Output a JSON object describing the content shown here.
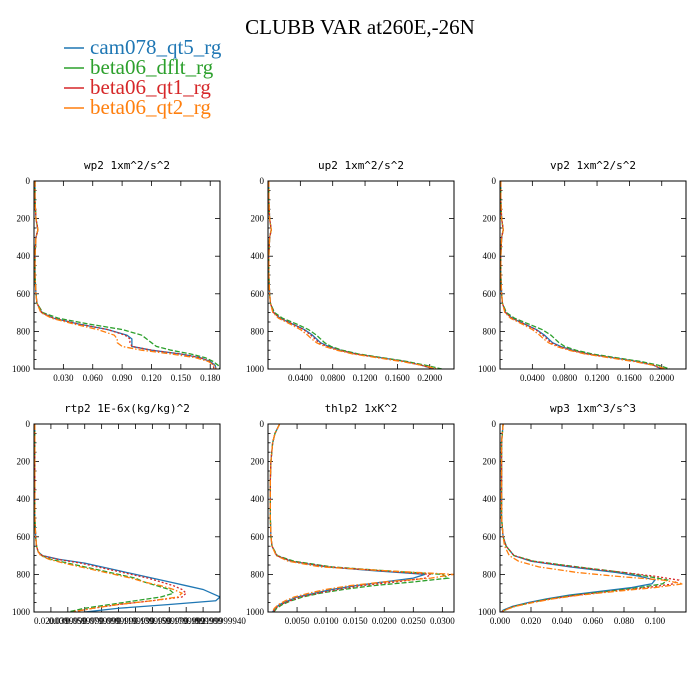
{
  "figure": {
    "title": "CLUBB VAR at260E,-26N"
  },
  "legend": [
    {
      "name": "cam078_qt5_rg",
      "color": "#1f77b4",
      "dash": ""
    },
    {
      "name": "beta06_dflt_rg",
      "color": "#2ca02c",
      "dash": "5,2"
    },
    {
      "name": "beta06_qt1_rg",
      "color": "#d62728",
      "dash": "2,2"
    },
    {
      "name": "beta06_qt2_rg",
      "color": "#ff7f0e",
      "dash": "6,2,1.5,2"
    }
  ],
  "chart_data": [
    {
      "type": "line",
      "title": "wp2  1xm^2/s^2",
      "xlim": [
        0,
        0.19
      ],
      "ylim": [
        1000,
        0
      ],
      "xticks": [
        0.03,
        0.06,
        0.09,
        0.12,
        0.15,
        0.18
      ],
      "xtick_labels": [
        "0.030",
        "0.060",
        "0.090",
        "0.120",
        "0.150",
        "0.180"
      ],
      "yticks": [
        0,
        200,
        400,
        600,
        800,
        1000
      ],
      "ytick_labels": [
        "0",
        "200",
        "400",
        "600",
        "800",
        "1000"
      ],
      "y": [
        0,
        100,
        200,
        260,
        300,
        400,
        500,
        600,
        650,
        700,
        730,
        760,
        790,
        820,
        840,
        860,
        880,
        900,
        920,
        940,
        960,
        980,
        1000
      ],
      "series": [
        {
          "name": "cam078_qt5_rg",
          "x": [
            0.001,
            0.001,
            0.002,
            0.004,
            0.002,
            0.001,
            0.001,
            0.002,
            0.003,
            0.008,
            0.02,
            0.045,
            0.075,
            0.095,
            0.1,
            0.1,
            0.1,
            0.12,
            0.15,
            0.17,
            0.18,
            0.185,
            0.186
          ]
        },
        {
          "name": "beta06_dflt_rg",
          "x": [
            0.001,
            0.001,
            0.002,
            0.004,
            0.002,
            0.001,
            0.001,
            0.002,
            0.003,
            0.009,
            0.025,
            0.055,
            0.09,
            0.11,
            0.115,
            0.12,
            0.125,
            0.14,
            0.16,
            0.175,
            0.183,
            0.188,
            0.19
          ]
        },
        {
          "name": "beta06_qt1_rg",
          "x": [
            0.001,
            0.001,
            0.002,
            0.004,
            0.002,
            0.001,
            0.001,
            0.002,
            0.003,
            0.008,
            0.02,
            0.045,
            0.075,
            0.093,
            0.098,
            0.098,
            0.1,
            0.12,
            0.15,
            0.17,
            0.18,
            0.183,
            0.184
          ]
        },
        {
          "name": "beta06_qt2_rg",
          "x": [
            0.001,
            0.001,
            0.002,
            0.004,
            0.002,
            0.001,
            0.001,
            0.002,
            0.003,
            0.007,
            0.018,
            0.04,
            0.065,
            0.082,
            0.085,
            0.085,
            0.09,
            0.11,
            0.14,
            0.165,
            0.178,
            0.184,
            0.186
          ]
        }
      ]
    },
    {
      "type": "line",
      "title": "up2  1xm^2/s^2",
      "xlim": [
        0,
        0.23
      ],
      "ylim": [
        1000,
        0
      ],
      "xticks": [
        0.04,
        0.08,
        0.12,
        0.16,
        0.2
      ],
      "xtick_labels": [
        "0.0400",
        "0.0800",
        "0.1200",
        "0.1600",
        "0.2000"
      ],
      "yticks": [
        0,
        200,
        400,
        600,
        800,
        1000
      ],
      "ytick_labels": [
        "0",
        "200",
        "400",
        "600",
        "800",
        "1000"
      ],
      "y": [
        0,
        100,
        200,
        260,
        300,
        400,
        500,
        600,
        650,
        700,
        730,
        760,
        790,
        820,
        840,
        860,
        880,
        900,
        920,
        940,
        960,
        980,
        1000
      ],
      "series": [
        {
          "name": "cam078_qt5_rg",
          "x": [
            0.001,
            0.001,
            0.002,
            0.004,
            0.002,
            0.001,
            0.001,
            0.002,
            0.003,
            0.007,
            0.015,
            0.03,
            0.045,
            0.055,
            0.06,
            0.065,
            0.075,
            0.09,
            0.11,
            0.14,
            0.17,
            0.19,
            0.205
          ]
        },
        {
          "name": "beta06_dflt_rg",
          "x": [
            0.001,
            0.001,
            0.002,
            0.004,
            0.002,
            0.001,
            0.001,
            0.002,
            0.003,
            0.008,
            0.018,
            0.035,
            0.05,
            0.06,
            0.065,
            0.07,
            0.078,
            0.092,
            0.112,
            0.142,
            0.172,
            0.195,
            0.215
          ]
        },
        {
          "name": "beta06_qt1_rg",
          "x": [
            0.001,
            0.001,
            0.002,
            0.004,
            0.002,
            0.001,
            0.001,
            0.002,
            0.003,
            0.007,
            0.015,
            0.03,
            0.044,
            0.053,
            0.058,
            0.063,
            0.073,
            0.088,
            0.108,
            0.138,
            0.168,
            0.19,
            0.205
          ]
        },
        {
          "name": "beta06_qt2_rg",
          "x": [
            0.001,
            0.001,
            0.002,
            0.004,
            0.002,
            0.001,
            0.001,
            0.002,
            0.003,
            0.006,
            0.013,
            0.027,
            0.04,
            0.049,
            0.054,
            0.06,
            0.07,
            0.085,
            0.105,
            0.135,
            0.165,
            0.19,
            0.21
          ]
        }
      ]
    },
    {
      "type": "line",
      "title": "vp2  1xm^2/s^2",
      "xlim": [
        0,
        0.23
      ],
      "ylim": [
        1000,
        0
      ],
      "xticks": [
        0.04,
        0.08,
        0.12,
        0.16,
        0.2
      ],
      "xtick_labels": [
        "0.0400",
        "0.0800",
        "0.1200",
        "0.1600",
        "0.2000"
      ],
      "yticks": [
        0,
        200,
        400,
        600,
        800,
        1000
      ],
      "ytick_labels": [
        "0",
        "200",
        "400",
        "600",
        "800",
        "1000"
      ],
      "y": [
        0,
        100,
        200,
        260,
        300,
        400,
        500,
        600,
        650,
        700,
        730,
        760,
        790,
        820,
        840,
        860,
        880,
        900,
        920,
        940,
        960,
        980,
        1000
      ],
      "series": [
        {
          "name": "cam078_qt5_rg",
          "x": [
            0.001,
            0.001,
            0.002,
            0.004,
            0.002,
            0.001,
            0.001,
            0.002,
            0.003,
            0.007,
            0.015,
            0.03,
            0.045,
            0.055,
            0.06,
            0.065,
            0.075,
            0.09,
            0.11,
            0.14,
            0.17,
            0.19,
            0.2
          ]
        },
        {
          "name": "beta06_dflt_rg",
          "x": [
            0.001,
            0.001,
            0.002,
            0.004,
            0.002,
            0.001,
            0.001,
            0.002,
            0.003,
            0.008,
            0.018,
            0.035,
            0.052,
            0.063,
            0.068,
            0.073,
            0.08,
            0.094,
            0.114,
            0.144,
            0.174,
            0.196,
            0.21
          ]
        },
        {
          "name": "beta06_qt1_rg",
          "x": [
            0.001,
            0.001,
            0.002,
            0.004,
            0.002,
            0.001,
            0.001,
            0.002,
            0.003,
            0.007,
            0.015,
            0.03,
            0.044,
            0.053,
            0.058,
            0.063,
            0.073,
            0.088,
            0.108,
            0.138,
            0.168,
            0.19,
            0.2
          ]
        },
        {
          "name": "beta06_qt2_rg",
          "x": [
            0.001,
            0.001,
            0.002,
            0.004,
            0.002,
            0.001,
            0.001,
            0.002,
            0.003,
            0.006,
            0.013,
            0.027,
            0.04,
            0.049,
            0.054,
            0.06,
            0.07,
            0.085,
            0.105,
            0.135,
            0.165,
            0.19,
            0.205
          ]
        }
      ]
    },
    {
      "type": "line",
      "title": "rtp2  1E-6x(kg/kg)^2",
      "xlim": [
        0,
        0.22
      ],
      "ylim": [
        1000,
        0
      ],
      "xticks": [
        0.02,
        0.04,
        0.06,
        0.08,
        0.1,
        0.12,
        0.14,
        0.16,
        0.18,
        0.2,
        0.22
      ],
      "xtick_labels": [
        "0.020000",
        "0.0399999",
        "0.0599999",
        "0.0799999",
        "0.0999999",
        "0.1199999",
        "0.1399999",
        "0.1599999",
        "0.1799999",
        "0.1999999",
        "0.2199999940"
      ],
      "yticks": [
        0,
        200,
        400,
        600,
        800,
        1000
      ],
      "ytick_labels": [
        "0",
        "200",
        "400",
        "600",
        "800",
        "1000"
      ],
      "y": [
        0,
        100,
        200,
        300,
        400,
        500,
        600,
        650,
        680,
        700,
        720,
        740,
        760,
        780,
        800,
        820,
        840,
        860,
        880,
        900,
        920,
        940,
        960,
        980,
        1000
      ],
      "series": [
        {
          "name": "cam078_qt5_rg",
          "x": [
            0.001,
            0.001,
            0.001,
            0.001,
            0.001,
            0.001,
            0.002,
            0.003,
            0.005,
            0.01,
            0.03,
            0.06,
            0.08,
            0.1,
            0.12,
            0.14,
            0.16,
            0.18,
            0.2,
            0.21,
            0.22,
            0.215,
            0.16,
            0.1,
            0.06
          ]
        },
        {
          "name": "beta06_dflt_rg",
          "x": [
            0.001,
            0.001,
            0.001,
            0.001,
            0.001,
            0.001,
            0.002,
            0.003,
            0.005,
            0.009,
            0.02,
            0.04,
            0.06,
            0.08,
            0.1,
            0.12,
            0.13,
            0.145,
            0.16,
            0.165,
            0.15,
            0.12,
            0.09,
            0.06,
            0.04
          ]
        },
        {
          "name": "beta06_qt1_rg",
          "x": [
            0.001,
            0.001,
            0.001,
            0.001,
            0.001,
            0.001,
            0.002,
            0.003,
            0.005,
            0.01,
            0.028,
            0.055,
            0.075,
            0.095,
            0.115,
            0.135,
            0.15,
            0.165,
            0.175,
            0.18,
            0.175,
            0.14,
            0.1,
            0.07,
            0.045
          ]
        },
        {
          "name": "beta06_qt2_rg",
          "x": [
            0.001,
            0.001,
            0.001,
            0.001,
            0.001,
            0.001,
            0.002,
            0.003,
            0.005,
            0.008,
            0.018,
            0.035,
            0.055,
            0.075,
            0.095,
            0.115,
            0.13,
            0.15,
            0.165,
            0.175,
            0.17,
            0.14,
            0.1,
            0.07,
            0.045
          ]
        }
      ]
    },
    {
      "type": "line",
      "title": "thlp2  1xK^2",
      "xlim": [
        0,
        0.032
      ],
      "ylim": [
        1000,
        0
      ],
      "xticks": [
        0.005,
        0.01,
        0.015,
        0.02,
        0.025,
        0.03
      ],
      "xtick_labels": [
        "0.0050",
        "0.0100",
        "0.0150",
        "0.0200",
        "0.0250",
        "0.0300"
      ],
      "yticks": [
        0,
        200,
        400,
        600,
        800,
        1000
      ],
      "ytick_labels": [
        "0",
        "200",
        "400",
        "600",
        "800",
        "1000"
      ],
      "y": [
        0,
        50,
        100,
        200,
        300,
        400,
        500,
        600,
        650,
        700,
        730,
        760,
        780,
        800,
        820,
        840,
        860,
        880,
        900,
        920,
        940,
        960,
        980,
        1000
      ],
      "series": [
        {
          "name": "cam078_qt5_rg",
          "x": [
            0.002,
            0.0012,
            0.0008,
            0.0005,
            0.0004,
            0.0004,
            0.0004,
            0.0005,
            0.0007,
            0.0015,
            0.004,
            0.01,
            0.018,
            0.027,
            0.025,
            0.02,
            0.015,
            0.011,
            0.008,
            0.005,
            0.0035,
            0.002,
            0.0012,
            0.0008
          ]
        },
        {
          "name": "beta06_dflt_rg",
          "x": [
            0.002,
            0.0012,
            0.0008,
            0.0005,
            0.0004,
            0.0004,
            0.0004,
            0.0005,
            0.0007,
            0.0016,
            0.0045,
            0.011,
            0.02,
            0.03,
            0.031,
            0.025,
            0.018,
            0.013,
            0.009,
            0.006,
            0.004,
            0.0025,
            0.0015,
            0.001
          ]
        },
        {
          "name": "beta06_qt1_rg",
          "x": [
            0.002,
            0.0012,
            0.0008,
            0.0005,
            0.0004,
            0.0004,
            0.0004,
            0.0005,
            0.0007,
            0.0015,
            0.004,
            0.0105,
            0.019,
            0.028,
            0.027,
            0.022,
            0.016,
            0.012,
            0.0085,
            0.0055,
            0.0038,
            0.0022,
            0.0013,
            0.0009
          ]
        },
        {
          "name": "beta06_qt2_rg",
          "x": [
            0.002,
            0.0012,
            0.0008,
            0.0005,
            0.0004,
            0.0004,
            0.0004,
            0.0005,
            0.0007,
            0.0014,
            0.0035,
            0.009,
            0.02,
            0.032,
            0.028,
            0.02,
            0.014,
            0.01,
            0.007,
            0.0045,
            0.003,
            0.0018,
            0.0011,
            0.0007
          ]
        }
      ]
    },
    {
      "type": "line",
      "title": "wp3  1xm^3/s^3",
      "xlim": [
        0,
        0.12
      ],
      "ylim": [
        1000,
        0
      ],
      "xticks": [
        0,
        0.02,
        0.04,
        0.06,
        0.08,
        0.1
      ],
      "xtick_labels": [
        "0.000",
        "0.020",
        "0.040",
        "0.060",
        "0.080",
        "0.100"
      ],
      "yticks": [
        0,
        200,
        400,
        600,
        800,
        1000
      ],
      "ytick_labels": [
        "0",
        "200",
        "400",
        "600",
        "800",
        "1000"
      ],
      "y": [
        0,
        100,
        200,
        300,
        400,
        500,
        600,
        650,
        700,
        730,
        760,
        790,
        810,
        830,
        850,
        870,
        890,
        910,
        930,
        950,
        970,
        990,
        1000
      ],
      "series": [
        {
          "name": "cam078_qt5_rg",
          "x": [
            0.002,
            0.001,
            0.001,
            0.001,
            0.001,
            0.001,
            0.002,
            0.004,
            0.009,
            0.02,
            0.045,
            0.075,
            0.09,
            0.1,
            0.098,
            0.085,
            0.065,
            0.045,
            0.03,
            0.018,
            0.008,
            0.002,
            0.001
          ]
        },
        {
          "name": "beta06_dflt_rg",
          "x": [
            0.002,
            0.001,
            0.001,
            0.001,
            0.001,
            0.001,
            0.002,
            0.004,
            0.009,
            0.022,
            0.05,
            0.08,
            0.095,
            0.108,
            0.105,
            0.09,
            0.07,
            0.048,
            0.032,
            0.02,
            0.009,
            0.003,
            0.001
          ]
        },
        {
          "name": "beta06_qt1_rg",
          "x": [
            0.002,
            0.001,
            0.001,
            0.001,
            0.001,
            0.001,
            0.002,
            0.004,
            0.009,
            0.021,
            0.048,
            0.08,
            0.1,
            0.115,
            0.112,
            0.095,
            0.072,
            0.05,
            0.033,
            0.02,
            0.009,
            0.003,
            0.001
          ]
        },
        {
          "name": "beta06_qt2_rg",
          "x": [
            0.002,
            0.001,
            0.001,
            0.001,
            0.001,
            0.001,
            0.002,
            0.003,
            0.006,
            0.012,
            0.025,
            0.05,
            0.075,
            0.105,
            0.118,
            0.1,
            0.075,
            0.052,
            0.034,
            0.021,
            0.01,
            0.003,
            0.001
          ]
        }
      ]
    }
  ]
}
